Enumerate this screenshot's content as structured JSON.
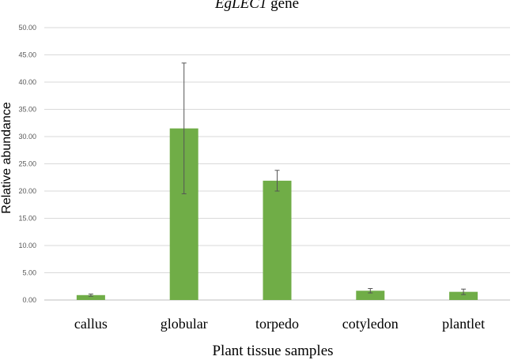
{
  "chart_data": {
    "type": "bar",
    "title_italic": "EgLEC1",
    "title_rest": " gene",
    "xlabel": "Plant tissue samples",
    "ylabel": "Relative abundance",
    "categories": [
      "callus",
      "globular",
      "torpedo",
      "cotyledon",
      "plantlet"
    ],
    "series": [
      {
        "values": [
          0.9,
          31.5,
          21.9,
          1.7,
          1.5
        ],
        "error": [
          0.2,
          12.0,
          1.9,
          0.4,
          0.5
        ]
      }
    ],
    "ylim": [
      0,
      50
    ],
    "yticks": [
      "0.00",
      "5.00",
      "10.00",
      "15.00",
      "20.00",
      "25.00",
      "30.00",
      "35.00",
      "40.00",
      "45.00",
      "50.00"
    ],
    "grid": true,
    "colors": {
      "bar": "#70ad47",
      "grid": "#d9d9d9",
      "error": "#555555"
    }
  }
}
